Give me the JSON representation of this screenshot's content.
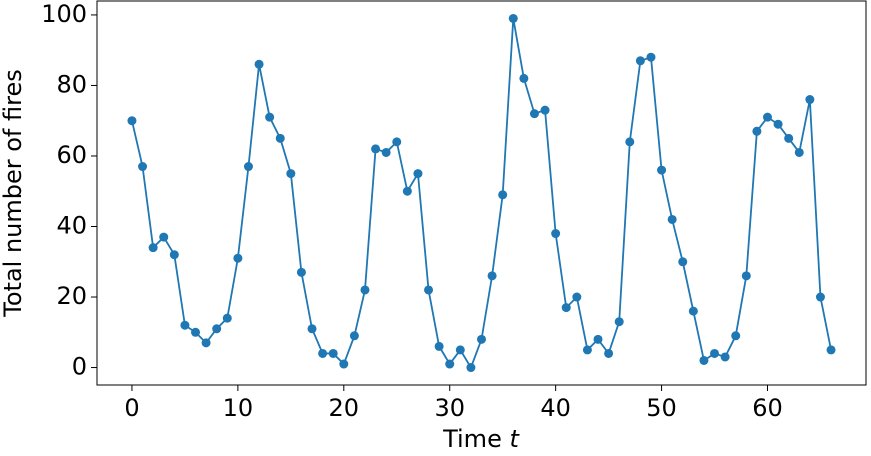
{
  "chart_data": {
    "type": "line",
    "xlabel": "Time t",
    "ylabel": "Total number of fires",
    "x": [
      0,
      1,
      2,
      3,
      4,
      5,
      6,
      7,
      8,
      9,
      10,
      11,
      12,
      13,
      14,
      15,
      16,
      17,
      18,
      19,
      20,
      21,
      22,
      23,
      24,
      25,
      26,
      27,
      28,
      29,
      30,
      31,
      32,
      33,
      34,
      35,
      36,
      37,
      38,
      39,
      40,
      41,
      42,
      43,
      44,
      45,
      46,
      47,
      48,
      49,
      50,
      51,
      52,
      53,
      54,
      55,
      56,
      57,
      58,
      59,
      60,
      61,
      62,
      63,
      64,
      65,
      66
    ],
    "series": [
      {
        "color": "#1f77b4",
        "values": [
          70,
          57,
          34,
          37,
          32,
          12,
          10,
          7,
          11,
          14,
          31,
          57,
          86,
          71,
          65,
          55,
          27,
          11,
          4,
          4,
          1,
          9,
          22,
          62,
          61,
          64,
          50,
          55,
          22,
          6,
          1,
          5,
          0,
          8,
          26,
          49,
          99,
          82,
          72,
          73,
          38,
          17,
          20,
          5,
          8,
          4,
          13,
          64,
          87,
          88,
          56,
          42,
          30,
          16,
          2,
          4,
          3,
          9,
          26,
          67,
          71,
          69,
          65,
          61,
          76,
          20,
          5
        ]
      }
    ],
    "xlim": [
      -3.3,
      69.3
    ],
    "ylim": [
      -4.95,
      103.95
    ],
    "xticks": [
      0,
      10,
      20,
      30,
      40,
      50,
      60
    ],
    "yticks": [
      0,
      20,
      40,
      60,
      80,
      100
    ],
    "grid": false,
    "markers": true
  }
}
